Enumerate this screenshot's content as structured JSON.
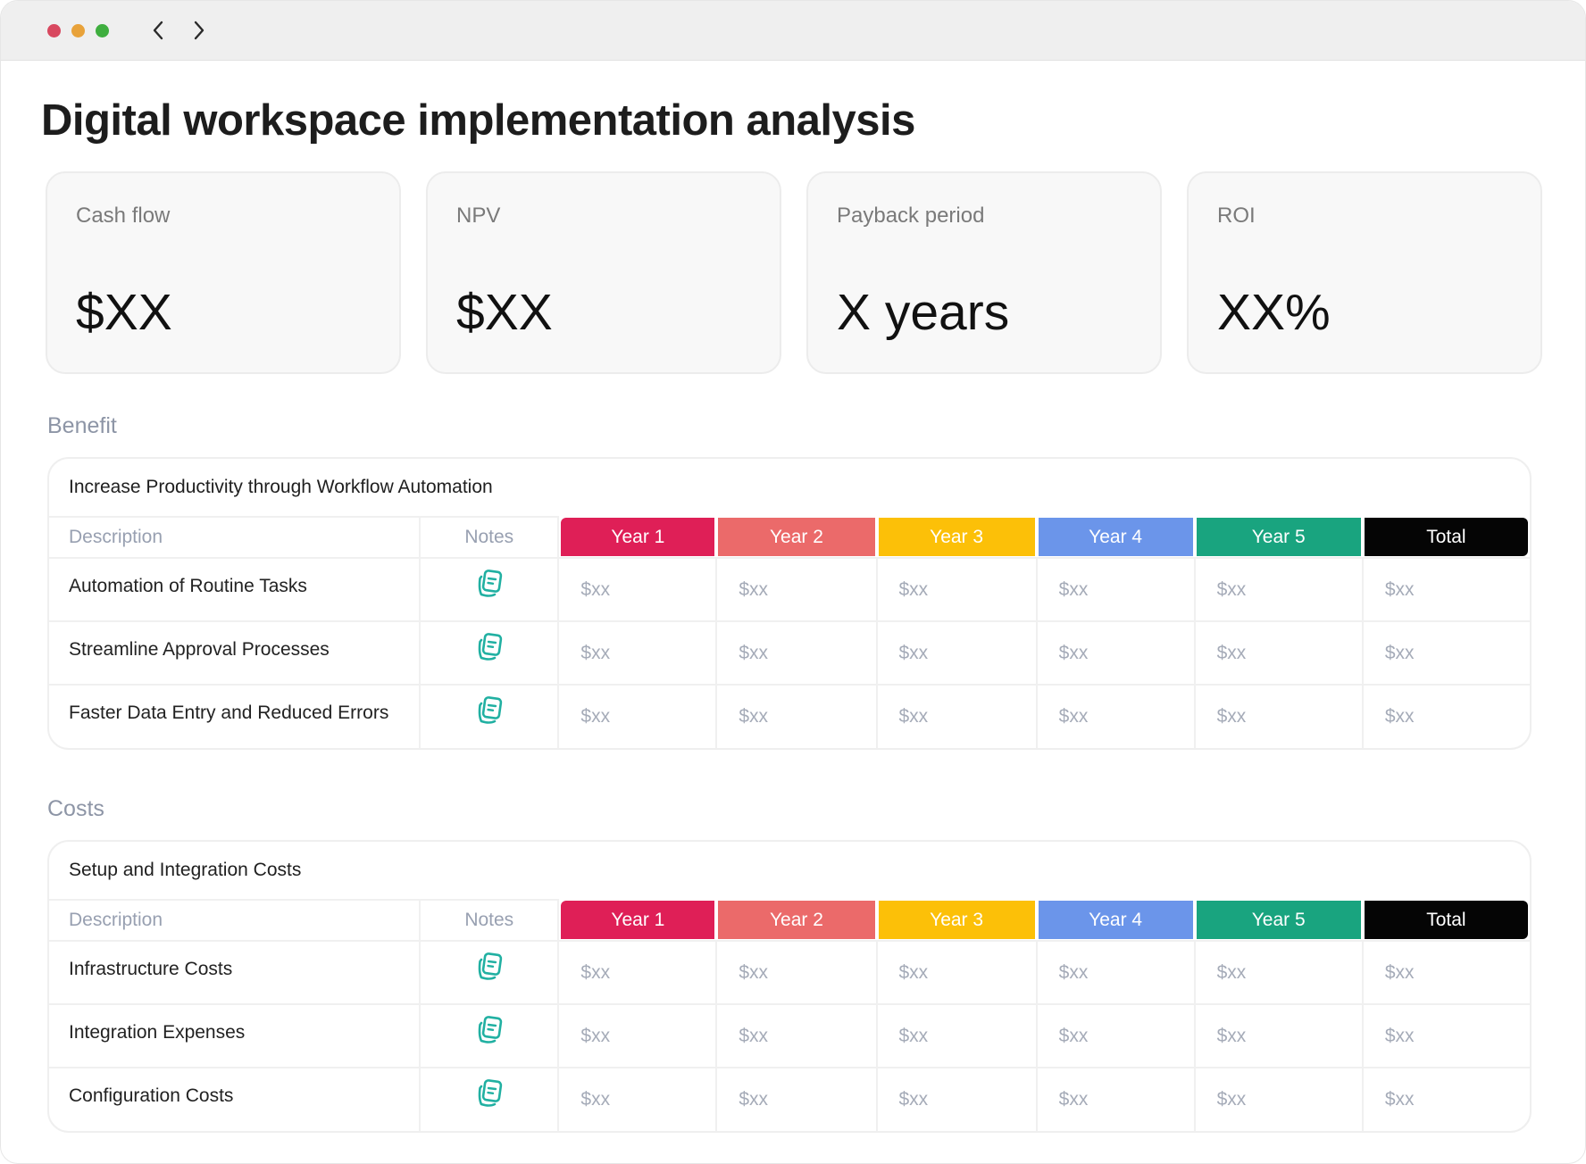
{
  "window": {
    "controls": [
      "close",
      "minimize",
      "maximize"
    ],
    "nav": {
      "back_icon": "chevron-left-icon",
      "forward_icon": "chevron-right-icon"
    }
  },
  "title": "Digital workspace implementation analysis",
  "kpis": [
    {
      "label": "Cash flow",
      "value": "$XX"
    },
    {
      "label": "NPV",
      "value": "$XX"
    },
    {
      "label": "Payback period",
      "value": "X years"
    },
    {
      "label": "ROI",
      "value": "XX%"
    }
  ],
  "columns": {
    "description": "Description",
    "notes": "Notes",
    "years": [
      {
        "label": "Year 1",
        "color": "#df1f57"
      },
      {
        "label": "Year 2",
        "color": "#eb6a6a"
      },
      {
        "label": "Year 3",
        "color": "#fcc008"
      },
      {
        "label": "Year 4",
        "color": "#6b95ea"
      },
      {
        "label": "Year 5",
        "color": "#19a47f"
      },
      {
        "label": "Total",
        "color": "#050505"
      }
    ]
  },
  "note_icon": {
    "name": "notes-icon",
    "color": "#21b0a2"
  },
  "sections": [
    {
      "title": "Benefit",
      "card_title": "Increase Productivity through Workflow Automation",
      "rows": [
        {
          "description": "Automation of Routine Tasks",
          "values": [
            "$xx",
            "$xx",
            "$xx",
            "$xx",
            "$xx",
            "$xx"
          ]
        },
        {
          "description": "Streamline Approval Processes",
          "values": [
            "$xx",
            "$xx",
            "$xx",
            "$xx",
            "$xx",
            "$xx"
          ]
        },
        {
          "description": "Faster Data Entry and Reduced Errors",
          "values": [
            "$xx",
            "$xx",
            "$xx",
            "$xx",
            "$xx",
            "$xx"
          ]
        }
      ]
    },
    {
      "title": "Costs",
      "card_title": "Setup and Integration Costs",
      "rows": [
        {
          "description": "Infrastructure Costs",
          "values": [
            "$xx",
            "$xx",
            "$xx",
            "$xx",
            "$xx",
            "$xx"
          ]
        },
        {
          "description": "Integration Expenses",
          "values": [
            "$xx",
            "$xx",
            "$xx",
            "$xx",
            "$xx",
            "$xx"
          ]
        },
        {
          "description": "Configuration Costs",
          "values": [
            "$xx",
            "$xx",
            "$xx",
            "$xx",
            "$xx",
            "$xx"
          ]
        }
      ]
    }
  ]
}
